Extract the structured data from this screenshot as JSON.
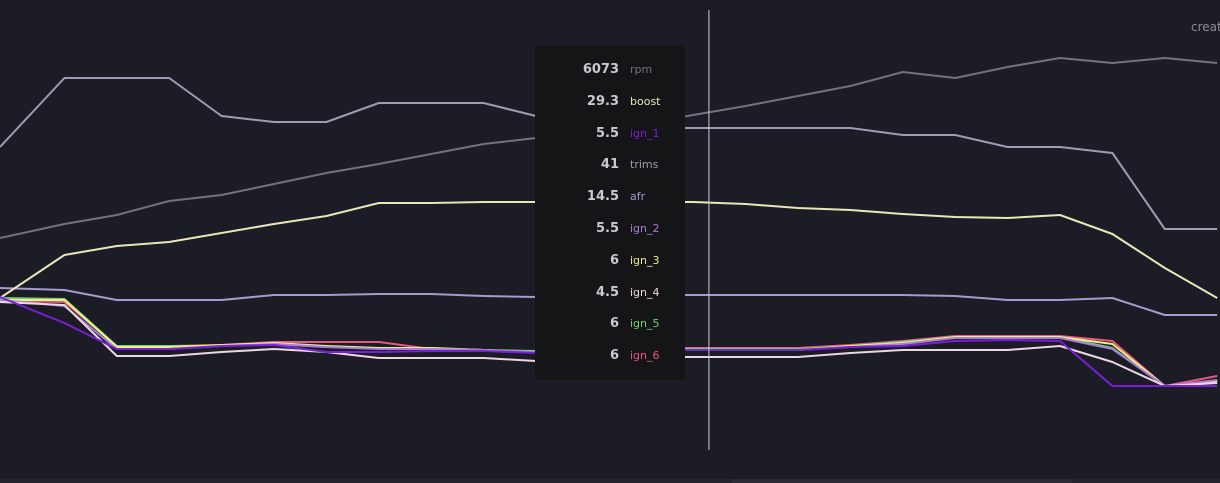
{
  "corner_label": "creat",
  "chart_data": {
    "type": "line",
    "title": "",
    "xlabel": "",
    "ylabel": "",
    "x": [
      0,
      1,
      2,
      3,
      4,
      5,
      6,
      7,
      8,
      9,
      10,
      11,
      12,
      13,
      14,
      15,
      16,
      17,
      18,
      19,
      20,
      21,
      22,
      23
    ],
    "cursor_x": 13.3,
    "series": [
      {
        "name": "rpm",
        "color": "#707280",
        "values": [
          238,
          224,
          215,
          201,
          195,
          184,
          173,
          164,
          154,
          144,
          138,
          133,
          124,
          115,
          106,
          96,
          86,
          72,
          78,
          67,
          58,
          63,
          58,
          63
        ]
      },
      {
        "name": "boost",
        "color": "#e9e6b8",
        "values": [
          298,
          255,
          246,
          242,
          233,
          224,
          216,
          203,
          203,
          202,
          202,
          202,
          202,
          202,
          204,
          208,
          210,
          214,
          217,
          218,
          215,
          234,
          268,
          298
        ]
      },
      {
        "name": "ign_1",
        "color": "#7a1fd6",
        "values": [
          297,
          323,
          349,
          349,
          346,
          345,
          352,
          352,
          351,
          351,
          353,
          352,
          350,
          350,
          350,
          350,
          347,
          346,
          341,
          340,
          341,
          386,
          386,
          386
        ]
      },
      {
        "name": "trims",
        "color": "#9c9db2",
        "values": [
          147,
          78,
          78,
          78,
          116,
          122,
          122,
          103,
          103,
          103,
          116,
          128,
          128,
          128,
          128,
          128,
          128,
          135,
          135,
          147,
          147,
          153,
          229,
          229
        ]
      },
      {
        "name": "afr",
        "color": "#a69ad0",
        "values": [
          288,
          290,
          300,
          300,
          300,
          295,
          295,
          294,
          294,
          296,
          297,
          296,
          295,
          295,
          295,
          295,
          295,
          295,
          296,
          300,
          300,
          298,
          315,
          315
        ]
      },
      {
        "name": "ign_2",
        "color": "#a67fd6",
        "values": [
          300,
          306,
          349,
          349,
          346,
          344,
          347,
          349,
          349,
          350,
          352,
          351,
          350,
          350,
          350,
          350,
          347,
          344,
          338,
          338,
          338,
          349,
          386,
          380
        ]
      },
      {
        "name": "ign_3",
        "color": "#eeee8c",
        "values": [
          300,
          300,
          347,
          347,
          345,
          343,
          346,
          348,
          348,
          350,
          352,
          350,
          350,
          350,
          350,
          350,
          346,
          343,
          337,
          337,
          337,
          344,
          386,
          381
        ]
      },
      {
        "name": "ign_4",
        "color": "#ecd7e2",
        "values": [
          302,
          305,
          356,
          356,
          352,
          349,
          352,
          358,
          358,
          358,
          361,
          359,
          357,
          357,
          357,
          357,
          353,
          350,
          350,
          350,
          346,
          362,
          386,
          383
        ]
      },
      {
        "name": "ign_5",
        "color": "#6dd36d",
        "values": [
          298,
          299,
          346,
          346,
          346,
          344,
          347,
          348,
          348,
          350,
          351,
          350,
          349,
          349,
          349,
          349,
          346,
          342,
          337,
          337,
          337,
          348,
          386,
          381
        ]
      },
      {
        "name": "ign_6",
        "color": "#e8587f",
        "values": [
          301,
          302,
          346,
          346,
          345,
          342,
          342,
          342,
          349,
          350,
          352,
          350,
          348,
          348,
          348,
          348,
          345,
          341,
          336,
          336,
          336,
          341,
          386,
          376
        ]
      }
    ],
    "tooltip": [
      {
        "value": "6073",
        "name": "rpm",
        "color": "#707280"
      },
      {
        "value": "29.3",
        "name": "boost",
        "color": "#e9e6b8"
      },
      {
        "value": "5.5",
        "name": "ign_1",
        "color": "#7a1fd6"
      },
      {
        "value": "41",
        "name": "trims",
        "color": "#9c9db2"
      },
      {
        "value": "14.5",
        "name": "afr",
        "color": "#a69ad0"
      },
      {
        "value": "5.5",
        "name": "ign_2",
        "color": "#a67fd6"
      },
      {
        "value": "6",
        "name": "ign_3",
        "color": "#eeee8c"
      },
      {
        "value": "4.5",
        "name": "ign_4",
        "color": "#ecd7e2"
      },
      {
        "value": "6",
        "name": "ign_5",
        "color": "#6dd36d"
      },
      {
        "value": "6",
        "name": "ign_6",
        "color": "#e8587f"
      }
    ],
    "grid": false,
    "legend": "tooltip"
  }
}
